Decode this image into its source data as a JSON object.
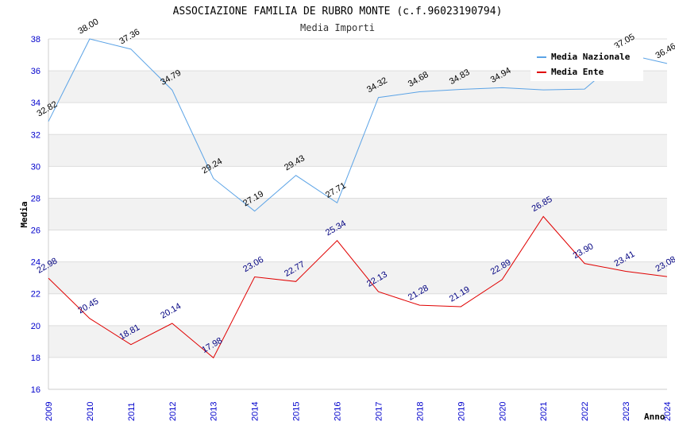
{
  "chart_data": {
    "type": "line",
    "title": "ASSOCIAZIONE FAMILIA DE RUBRO MONTE (c.f.96023190794)",
    "subtitle": "Media Importi",
    "xlabel": "Anno",
    "ylabel": "Media",
    "ylim": [
      16,
      38
    ],
    "yticks": [
      "16",
      "18",
      "20",
      "22",
      "24",
      "26",
      "28",
      "30",
      "32",
      "34",
      "36",
      "38"
    ],
    "categories": [
      "2009",
      "2010",
      "2011",
      "2012",
      "2013",
      "2014",
      "2015",
      "2016",
      "2017",
      "2018",
      "2019",
      "2020",
      "2021",
      "2022",
      "2023",
      "2024"
    ],
    "grid": "horizontal bands",
    "legend_position": "top-right",
    "series": [
      {
        "name": "Media Nazionale",
        "color": "#5ba3e6",
        "values": [
          32.82,
          38.0,
          37.36,
          34.79,
          29.24,
          27.19,
          29.43,
          27.71,
          34.32,
          34.68,
          34.83,
          34.94,
          34.8,
          34.85,
          37.05,
          36.46
        ],
        "labels": [
          "32.82",
          "38.00",
          "37.36",
          "34.79",
          "29.24",
          "27.19",
          "29.43",
          "27.71",
          "34.32",
          "34.68",
          "34.83",
          "34.94",
          "",
          "",
          "37.05",
          "36.46"
        ]
      },
      {
        "name": "Media Ente",
        "color": "#e00000",
        "values": [
          22.98,
          20.45,
          18.81,
          20.14,
          17.98,
          23.06,
          22.77,
          25.34,
          22.13,
          21.28,
          21.19,
          22.89,
          26.85,
          23.9,
          23.41,
          23.08
        ],
        "labels": [
          "22.98",
          "20.45",
          "18.81",
          "20.14",
          "17.98",
          "23.06",
          "22.77",
          "25.34",
          "22.13",
          "21.28",
          "21.19",
          "22.89",
          "26.85",
          "23.90",
          "23.41",
          "23.08"
        ]
      }
    ]
  }
}
